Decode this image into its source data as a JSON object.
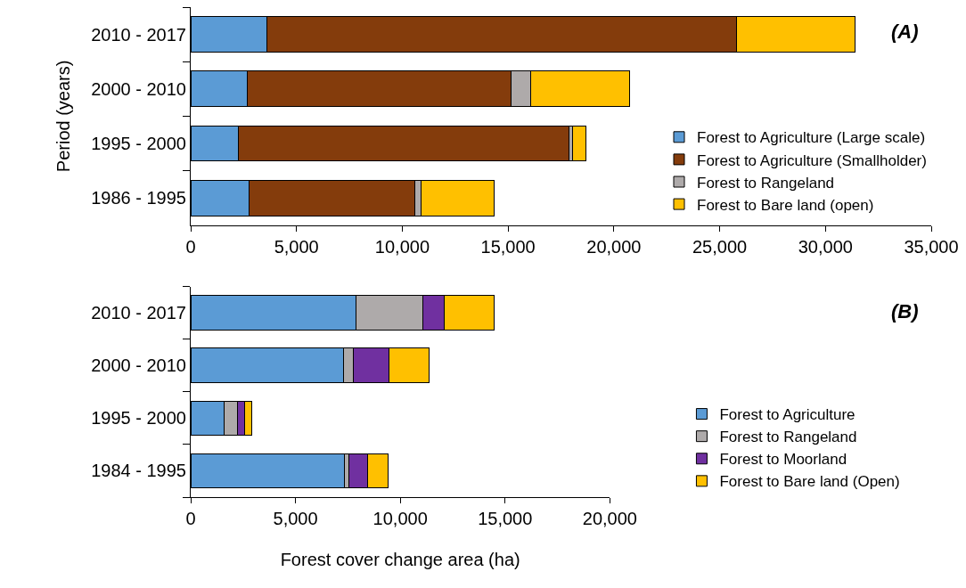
{
  "chart_data": [
    {
      "type": "bar",
      "orientation": "horizontal",
      "stacked": true,
      "ylabel": "Period (years)",
      "annotations": [
        "(A)"
      ],
      "categories": [
        "2010 - 2017",
        "2000 - 2010",
        "1995 - 2000",
        "1986 - 1995"
      ],
      "series": [
        {
          "name": "Forest to Agriculture (Large scale)",
          "color": "#5b9bd5",
          "values": [
            3600,
            2670,
            2270,
            2760
          ]
        },
        {
          "name": "Forest to Agriculture (Smallholder)",
          "color": "#843c0c",
          "values": [
            22190,
            12490,
            15600,
            7850
          ]
        },
        {
          "name": "Forest to Rangeland",
          "color": "#aeaaaa",
          "values": [
            0,
            910,
            160,
            280
          ]
        },
        {
          "name": "Forest to Bare land (open)",
          "color": "#ffc000",
          "values": [
            5590,
            4660,
            630,
            3460
          ]
        }
      ],
      "xlim": [
        0,
        35000
      ],
      "xticks": [
        0,
        {
          "value": 5000,
          "label": "5,000"
        },
        {
          "value": 10000,
          "label": "10,000"
        },
        {
          "value": 15000,
          "label": "15,000"
        },
        {
          "value": 20000,
          "label": "20,000"
        },
        {
          "value": 25000,
          "label": "25,000"
        },
        {
          "value": 30000,
          "label": "30,000"
        },
        {
          "value": 35000,
          "label": "35,000"
        }
      ],
      "legend": "bottom right"
    },
    {
      "type": "bar",
      "orientation": "horizontal",
      "stacked": true,
      "xlabel": "Forest cover change area (ha)",
      "annotations": [
        "(B)"
      ],
      "categories": [
        "2010 - 2017",
        "2000 - 2010",
        "1995 - 2000",
        "1984 - 1995"
      ],
      "series": [
        {
          "name": "Forest to Agriculture",
          "color": "#5b9bd5",
          "values": [
            7870,
            7310,
            1600,
            7340
          ]
        },
        {
          "name": "Forest to Rangeland",
          "color": "#aeaaaa",
          "values": [
            3210,
            460,
            630,
            220
          ]
        },
        {
          "name": "Forest to Moorland",
          "color": "#7030a0",
          "values": [
            1010,
            1670,
            330,
            900
          ]
        },
        {
          "name": "Forest to Bare land (Open)",
          "color": "#ffc000",
          "values": [
            2390,
            1930,
            340,
            940
          ]
        }
      ],
      "xlim": [
        0,
        20000
      ],
      "xticks": [
        0,
        {
          "value": 5000,
          "label": "5,000"
        },
        {
          "value": 10000,
          "label": "10,000"
        },
        {
          "value": 15000,
          "label": "15,000"
        },
        {
          "value": 20000,
          "label": "20,000"
        }
      ],
      "legend": "right"
    }
  ]
}
